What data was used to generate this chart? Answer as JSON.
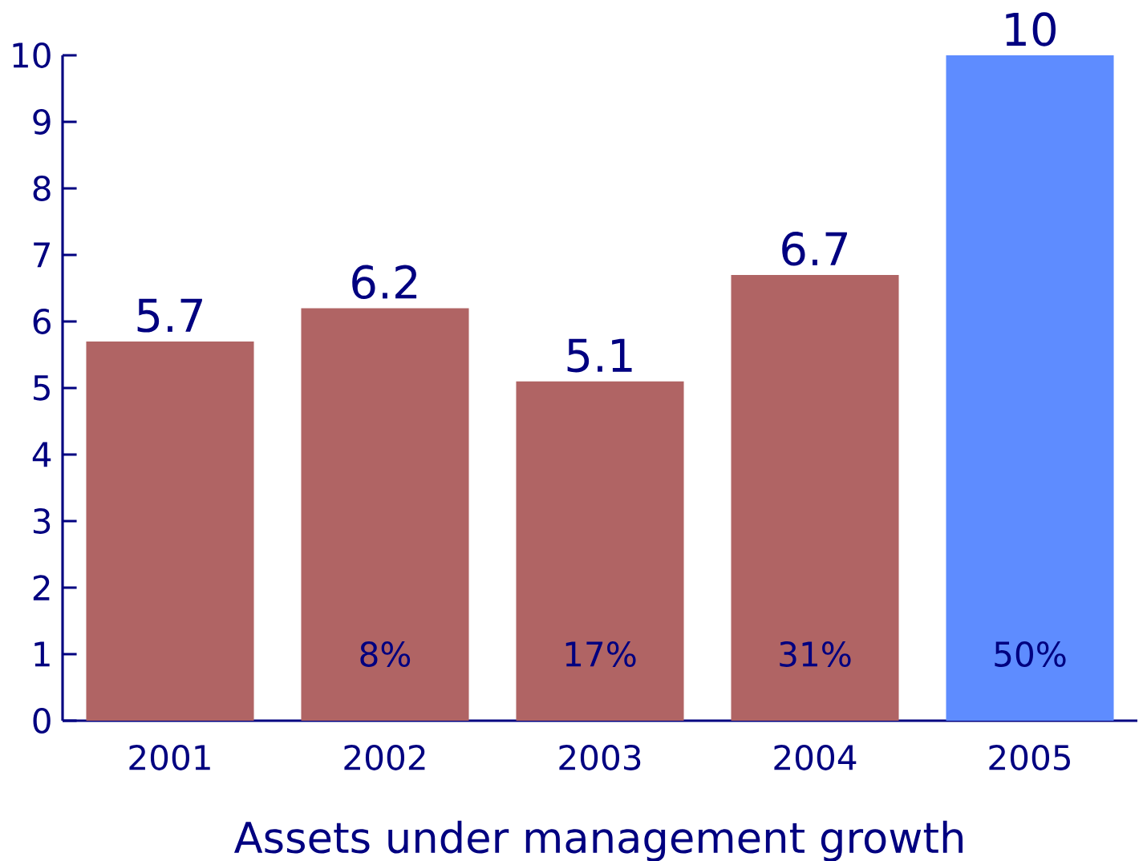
{
  "chart_data": {
    "type": "bar",
    "xlabel": "Assets under management growth",
    "categories": [
      "2001",
      "2002",
      "2003",
      "2004",
      "2005"
    ],
    "values": [
      5.7,
      6.2,
      5.1,
      6.7,
      10
    ],
    "colors": [
      "#b06464",
      "#b06464",
      "#b06464",
      "#b06464",
      "#5e8cff"
    ],
    "value_labels": [
      "5.7",
      "6.2",
      "5.1",
      "6.7",
      "10"
    ],
    "ylim": [
      0,
      10
    ],
    "yticks": [
      0,
      1,
      2,
      3,
      4,
      5,
      6,
      7,
      8,
      9,
      10
    ],
    "annotations": [
      "8%",
      "17%",
      "31%",
      "50%"
    ],
    "grid": false
  }
}
